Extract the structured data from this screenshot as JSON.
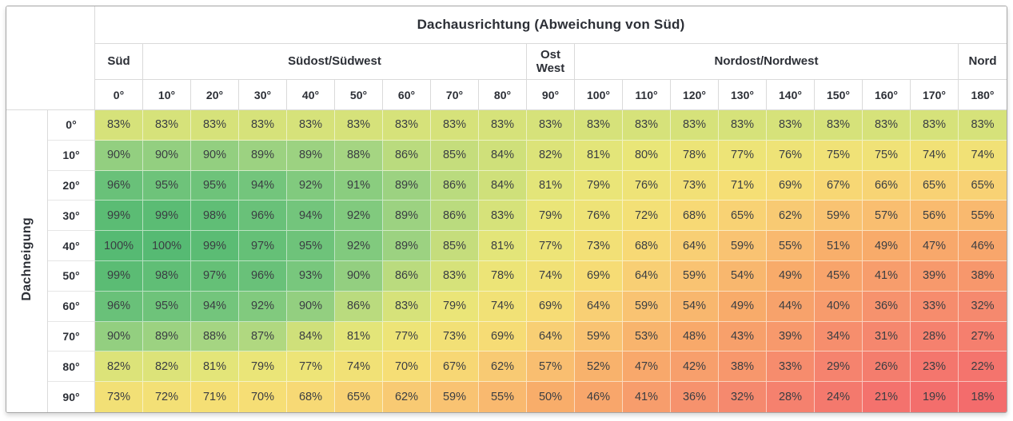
{
  "colors": {
    "frame_border": "#a6a6a6",
    "header_border": "#dadada",
    "header_text": "#2c2f36",
    "value_text": "#3a3d42",
    "scale_high": "#56ba73",
    "scale_mid": "#f9c573",
    "scale_low": "#f36c6c"
  },
  "chart_data": {
    "type": "heatmap",
    "title": "Dachausrichtung (Abweichung von Süd)",
    "row_axis": "Dachneigung",
    "unit": "%",
    "legend_position": "none",
    "col_groups": [
      {
        "label": "Süd",
        "span": 1
      },
      {
        "label": "Südost/Südwest",
        "span": 8
      },
      {
        "label": "Ost\nWest",
        "span": 1
      },
      {
        "label": "Nordost/Nordwest",
        "span": 8
      },
      {
        "label": "Nord",
        "span": 1
      }
    ],
    "columns": [
      "0°",
      "10°",
      "20°",
      "30°",
      "40°",
      "50°",
      "60°",
      "70°",
      "80°",
      "90°",
      "100°",
      "110°",
      "120°",
      "130°",
      "140°",
      "150°",
      "160°",
      "170°",
      "180°"
    ],
    "rows": [
      "0°",
      "10°",
      "20°",
      "30°",
      "40°",
      "50°",
      "60°",
      "70°",
      "80°",
      "90°"
    ],
    "values": [
      [
        83,
        83,
        83,
        83,
        83,
        83,
        83,
        83,
        83,
        83,
        83,
        83,
        83,
        83,
        83,
        83,
        83,
        83,
        83
      ],
      [
        90,
        90,
        90,
        89,
        89,
        88,
        86,
        85,
        84,
        82,
        81,
        80,
        78,
        77,
        76,
        75,
        75,
        74,
        74
      ],
      [
        96,
        95,
        95,
        94,
        92,
        91,
        89,
        86,
        84,
        81,
        79,
        76,
        73,
        71,
        69,
        67,
        66,
        65,
        65
      ],
      [
        99,
        99,
        98,
        96,
        94,
        92,
        89,
        86,
        83,
        79,
        76,
        72,
        68,
        65,
        62,
        59,
        57,
        56,
        55
      ],
      [
        100,
        100,
        99,
        97,
        95,
        92,
        89,
        85,
        81,
        77,
        73,
        68,
        64,
        59,
        55,
        51,
        49,
        47,
        46
      ],
      [
        99,
        98,
        97,
        96,
        93,
        90,
        86,
        83,
        78,
        74,
        69,
        64,
        59,
        54,
        49,
        45,
        41,
        39,
        38
      ],
      [
        96,
        95,
        94,
        92,
        90,
        86,
        83,
        79,
        74,
        69,
        64,
        59,
        54,
        49,
        44,
        40,
        36,
        33,
        32
      ],
      [
        90,
        89,
        88,
        87,
        84,
        81,
        77,
        73,
        69,
        64,
        59,
        53,
        48,
        43,
        39,
        34,
        31,
        28,
        27
      ],
      [
        82,
        82,
        81,
        79,
        77,
        74,
        70,
        67,
        62,
        57,
        52,
        47,
        42,
        38,
        33,
        29,
        26,
        23,
        22
      ],
      [
        73,
        72,
        71,
        70,
        68,
        65,
        62,
        59,
        55,
        50,
        46,
        41,
        36,
        32,
        28,
        24,
        21,
        19,
        18
      ]
    ],
    "color_stops": [
      [
        18,
        "#f36c6c"
      ],
      [
        30,
        "#f5856e"
      ],
      [
        40,
        "#f79b6c"
      ],
      [
        50,
        "#f8ad6a"
      ],
      [
        60,
        "#f9c573"
      ],
      [
        70,
        "#f6de75"
      ],
      [
        80,
        "#e9e678"
      ],
      [
        84,
        "#cfe07a"
      ],
      [
        88,
        "#a5d582"
      ],
      [
        93,
        "#78c77d"
      ],
      [
        100,
        "#56ba73"
      ]
    ]
  }
}
